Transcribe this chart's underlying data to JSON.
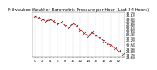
{
  "title": "Milwaukee Weather Barometric Pressure per Hour (Last 24 Hours)",
  "hours": [
    0,
    1,
    2,
    3,
    4,
    5,
    6,
    7,
    8,
    9,
    10,
    11,
    12,
    13,
    14,
    15,
    16,
    17,
    18,
    19,
    20,
    21,
    22,
    23
  ],
  "pressure": [
    30.05,
    30.02,
    29.95,
    29.88,
    29.95,
    29.88,
    29.78,
    29.85,
    29.72,
    29.65,
    29.8,
    29.75,
    29.55,
    29.45,
    29.35,
    29.48,
    29.38,
    29.28,
    29.18,
    29.08,
    29.02,
    28.92,
    28.82,
    28.72
  ],
  "line_color": "#cc0000",
  "marker_color": "#333333",
  "bg_color": "#ffffff",
  "grid_color": "#aaaaaa",
  "title_fontsize": 3.8,
  "tick_fontsize": 3.0,
  "ylim_min": 28.6,
  "ylim_max": 30.2,
  "ytick_step": 0.1
}
